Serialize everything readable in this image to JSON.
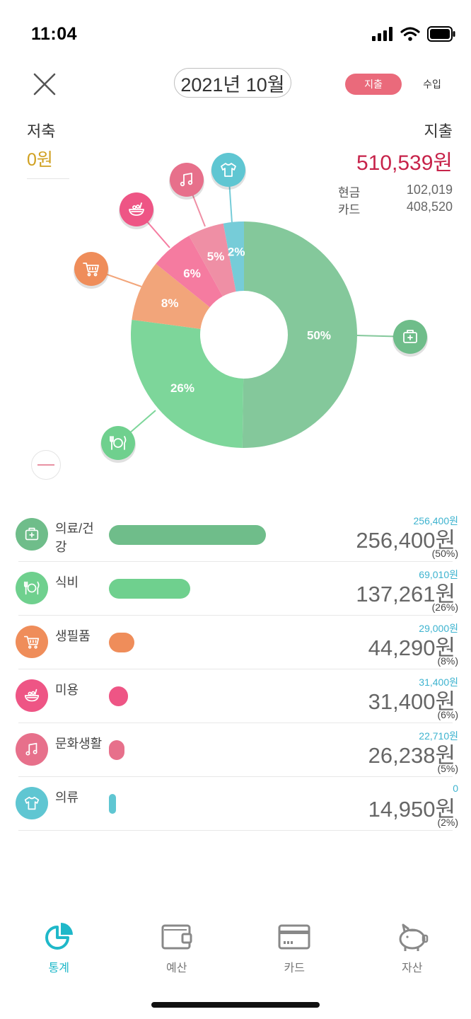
{
  "status": {
    "time": "11:04"
  },
  "header": {
    "month": "2021년 10월",
    "tabs": {
      "expense": "지출",
      "income": "수입"
    }
  },
  "summary": {
    "savings_label": "저축",
    "savings_value": "0원",
    "expense_label": "지출",
    "expense_total": "510,539원",
    "payment": [
      {
        "label": "현금",
        "value": "102,019"
      },
      {
        "label": "카드",
        "value": "408,520"
      }
    ]
  },
  "chart_data": {
    "type": "pie",
    "categories": [
      "의료/건강",
      "식비",
      "생필품",
      "미용",
      "문화생활",
      "의류"
    ],
    "values": [
      256400,
      137261,
      44290,
      31400,
      26238,
      14950
    ],
    "labels": [
      "50%",
      "26%",
      "8%",
      "6%",
      "5%",
      "2%"
    ],
    "colors": [
      "#84c89b",
      "#7dd69a",
      "#f2a57a",
      "#f57ba0",
      "#ef8fa5",
      "#76ccd8"
    ]
  },
  "categories": [
    {
      "name": "의료/건강",
      "budget": "256,400원",
      "amount": "256,400원",
      "pct": "(50%)",
      "color": "#6fbd8a",
      "icon": "first-aid-kit-icon",
      "bar_fraction": 0.5
    },
    {
      "name": "식비",
      "budget": "69,010원",
      "amount": "137,261원",
      "pct": "(26%)",
      "color": "#6fd08e",
      "icon": "dining-icon",
      "bar_fraction": 0.26
    },
    {
      "name": "생필품",
      "budget": "29,000원",
      "amount": "44,290원",
      "pct": "(8%)",
      "color": "#ef8d5a",
      "icon": "shopping-cart-icon",
      "bar_fraction": 0.08
    },
    {
      "name": "미용",
      "budget": "31,400원",
      "amount": "31,400원",
      "pct": "(6%)",
      "color": "#ee5585",
      "icon": "beauty-bowl-icon",
      "bar_fraction": 0.06
    },
    {
      "name": "문화생활",
      "budget": "22,710원",
      "amount": "26,238원",
      "pct": "(5%)",
      "color": "#e7708b",
      "icon": "music-note-icon",
      "bar_fraction": 0.05
    },
    {
      "name": "의류",
      "budget": "0",
      "amount": "14,950원",
      "pct": "(2%)",
      "color": "#5fc6d2",
      "icon": "t-shirt-icon",
      "bar_fraction": 0.02
    }
  ],
  "nav": [
    {
      "label": "통계",
      "icon": "statistics-pie-icon",
      "active": true
    },
    {
      "label": "예산",
      "icon": "wallet-icon",
      "active": false
    },
    {
      "label": "카드",
      "icon": "credit-card-icon",
      "active": false
    },
    {
      "label": "자산",
      "icon": "piggy-bank-icon",
      "active": false
    }
  ]
}
